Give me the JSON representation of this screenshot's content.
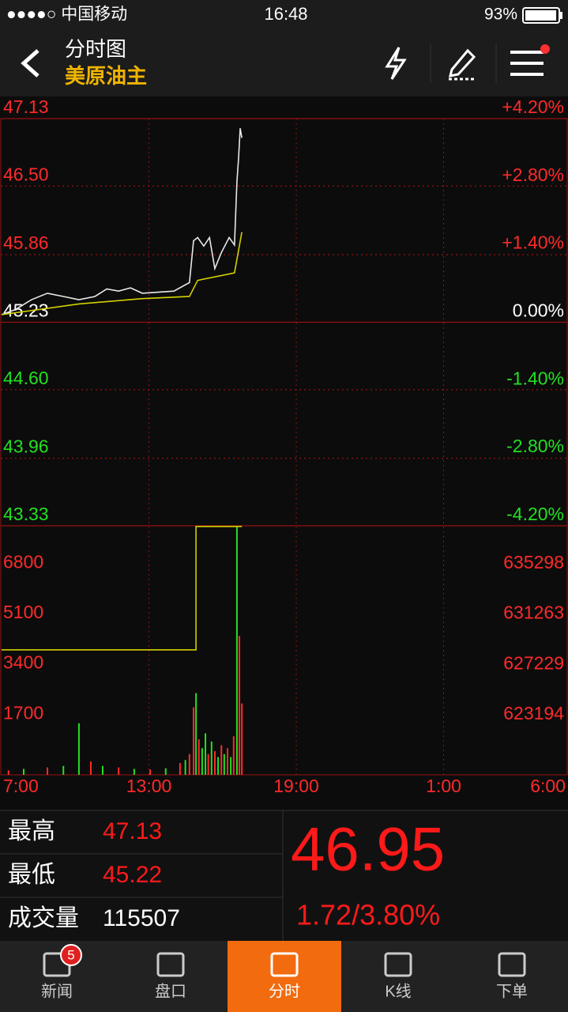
{
  "status_bar": {
    "carrier": "●●●●○ 中国移动",
    "time": "16:48",
    "battery": "93%"
  },
  "header": {
    "title": "分时图",
    "subtitle": "美原油主"
  },
  "chart_data": [
    {
      "type": "line",
      "xlim": [
        0,
        1380
      ],
      "ylim": [
        43.33,
        47.13
      ],
      "yticks": [
        47.13,
        {
          "value": 46.5,
          "label": "46.50"
        },
        45.86,
        45.23,
        {
          "value": 44.6,
          "label": "44.60"
        },
        43.96,
        43.33
      ],
      "y2lim": [
        -4.2,
        4.2
      ],
      "y2ticks": [
        {
          "value": 4.2,
          "label": "+4.20%"
        },
        {
          "value": 2.8,
          "label": "+2.80%"
        },
        {
          "value": 1.4,
          "label": "+1.40%"
        },
        {
          "value": 0,
          "label": "0.00%"
        },
        {
          "value": -1.4,
          "label": "-1.40%"
        },
        {
          "value": -2.8,
          "label": "-2.80%"
        },
        {
          "value": -4.2,
          "label": "-4.20%"
        }
      ],
      "up_color": "#ff2a2a",
      "down_color": "#22e022",
      "flat_color": "#ffffff",
      "series": [
        {
          "color": "#e8e8e8",
          "x": [
            0,
            35,
            73,
            112,
            151,
            189,
            228,
            257,
            286,
            315,
            344,
            382,
            421,
            459,
            469,
            479,
            494,
            508,
            521,
            537,
            556,
            569,
            575,
            579,
            583,
            587
          ],
          "values": [
            45.3,
            45.35,
            45.44,
            45.5,
            45.47,
            45.44,
            45.47,
            45.54,
            45.52,
            45.55,
            45.5,
            45.51,
            45.52,
            45.6,
            45.99,
            46.02,
            45.94,
            46.02,
            45.73,
            45.88,
            46.02,
            45.95,
            46.54,
            46.76,
            47.04,
            46.95
          ]
        },
        {
          "color": "#d4d000",
          "x": [
            0,
            189,
            344,
            459,
            479,
            569,
            587
          ],
          "values": [
            45.3,
            45.4,
            45.45,
            45.47,
            45.62,
            45.69,
            46.07
          ]
        }
      ]
    },
    {
      "type": "bar",
      "xlim": [
        0,
        1380
      ],
      "xticks": [
        {
          "value": 0,
          "label": "7:00"
        },
        {
          "value": 360,
          "label": "13:00"
        },
        {
          "value": 720,
          "label": "19:00"
        },
        {
          "value": 1080,
          "label": "1:00"
        },
        {
          "value": 1380,
          "label": "6:00"
        }
      ],
      "ylim": [
        0,
        8410
      ],
      "yticks": [
        6800,
        5100,
        3400,
        1700
      ],
      "y2lim": [
        619200,
        639160
      ],
      "y2ticks": [
        635298,
        631263,
        627229,
        623194
      ],
      "series": [
        {
          "type": "bar",
          "x": [
            17,
            54,
            112,
            151,
            189,
            218,
            247,
            286,
            324,
            363,
            401,
            436,
            449,
            459,
            469,
            475,
            482,
            490,
            498,
            505,
            513,
            521,
            529,
            537,
            544,
            552,
            560,
            567,
            575,
            581,
            587
          ],
          "values": [
            150,
            200,
            250,
            300,
            1740,
            450,
            300,
            250,
            200,
            180,
            220,
            400,
            500,
            700,
            2280,
            2760,
            1200,
            900,
            1400,
            700,
            1125,
            800,
            600,
            1000,
            700,
            900,
            600,
            1300,
            8400,
            4690,
            2410
          ],
          "colors": [
            "#ff2a2a",
            "#22e022",
            "#ff2a2a",
            "#22e022",
            "#22e022",
            "#ff2a2a",
            "#22e022",
            "#ff2a2a",
            "#22e022",
            "#ff2a2a",
            "#22e022",
            "#ff2a2a",
            "#22e022",
            "#ff2a2a",
            "#ff2a2a",
            "#22e022",
            "#ff2a2a",
            "#22e022",
            "#22e022",
            "#ff2a2a",
            "#22e022",
            "#ff2a2a",
            "#22e022",
            "#ff2a2a",
            "#22e022",
            "#ff2a2a",
            "#22e022",
            "#ff2a2a",
            "#22e022",
            "#ff2a2a",
            "#ff2a2a"
          ]
        },
        {
          "type": "line",
          "axis": "y2",
          "color": "#d4d000",
          "x": [
            0,
            475,
            475,
            587
          ],
          "values": [
            629214,
            629214,
            639100,
            639100
          ]
        }
      ]
    }
  ],
  "summary": {
    "rows": [
      [
        "最高",
        "47.13"
      ],
      [
        "最低",
        "45.22"
      ],
      [
        "成交量",
        "115507"
      ]
    ],
    "last_price": "46.95",
    "change": "1.72/3.80%"
  },
  "tabs": [
    {
      "label": "新闻",
      "badge": "5"
    },
    {
      "label": "盘口"
    },
    {
      "label": "分时",
      "active": true
    },
    {
      "label": "K线"
    },
    {
      "label": "下单"
    }
  ]
}
